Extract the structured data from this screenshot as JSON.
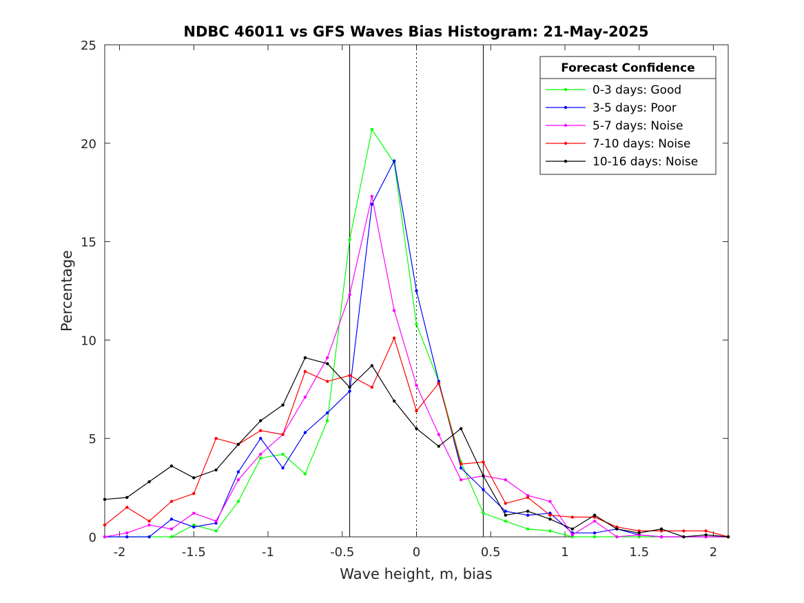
{
  "chart_data": {
    "type": "line",
    "title": "NDBC 46011 vs GFS Waves Bias Histogram: 21-May-2025",
    "xlabel": "Wave height, m, bias",
    "ylabel": "Percentage",
    "xlim": [
      -2.1,
      2.1
    ],
    "ylim": [
      0,
      25
    ],
    "xticks": [
      -2,
      -1.5,
      -1,
      -0.5,
      0,
      0.5,
      1,
      1.5,
      2
    ],
    "xtick_labels": [
      "-2",
      "-1.5",
      "-1",
      "-0.5",
      "0",
      "0.5",
      "1",
      "1.5",
      "2"
    ],
    "yticks": [
      0,
      5,
      10,
      15,
      20,
      25
    ],
    "ytick_labels": [
      "0",
      "5",
      "10",
      "15",
      "20",
      "25"
    ],
    "grid": false,
    "reference_lines": [
      {
        "x": -0.45,
        "style": "solid"
      },
      {
        "x": 0,
        "style": "dotted"
      },
      {
        "x": 0.45,
        "style": "solid"
      }
    ],
    "legend": {
      "title": "Forecast Confidence",
      "position": "top-right"
    },
    "x": [
      -2.1,
      -1.95,
      -1.8,
      -1.65,
      -1.5,
      -1.35,
      -1.2,
      -1.05,
      -0.9,
      -0.75,
      -0.6,
      -0.45,
      -0.3,
      -0.15,
      0,
      0.15,
      0.3,
      0.45,
      0.6,
      0.75,
      0.9,
      1.05,
      1.2,
      1.35,
      1.5,
      1.65,
      1.8,
      1.95,
      2.1
    ],
    "series": [
      {
        "name": "0-3 days: Good",
        "color": "#00ff00",
        "values": [
          0,
          0,
          0,
          0,
          0.6,
          0.3,
          1.8,
          4.0,
          4.2,
          3.2,
          5.9,
          15.1,
          20.7,
          19.0,
          10.8,
          7.9,
          3.8,
          1.2,
          0.8,
          0.4,
          0.3,
          0,
          0,
          0,
          0,
          0,
          0,
          0,
          0
        ]
      },
      {
        "name": "3-5 days: Poor",
        "color": "#0000ff",
        "values": [
          0,
          0,
          0,
          0.9,
          0.5,
          0.7,
          3.3,
          5.0,
          3.5,
          5.3,
          6.3,
          7.4,
          16.9,
          19.1,
          12.5,
          7.9,
          3.5,
          2.4,
          1.3,
          1.1,
          1.2,
          0.2,
          0.2,
          0.4,
          0.1,
          0,
          0,
          0,
          0
        ]
      },
      {
        "name": "5-7 days: Noise",
        "color": "#ff00ff",
        "values": [
          0,
          0.2,
          0.6,
          0.4,
          1.2,
          0.8,
          2.9,
          4.2,
          5.2,
          7.1,
          9.1,
          12.3,
          17.3,
          11.5,
          7.7,
          5.2,
          2.9,
          3.1,
          2.9,
          2.1,
          1.8,
          0.1,
          0.8,
          0,
          0.1,
          0,
          0,
          0,
          0
        ]
      },
      {
        "name": "7-10 days: Noise",
        "color": "#ff0000",
        "values": [
          0.6,
          1.5,
          0.8,
          1.8,
          2.2,
          5.0,
          4.7,
          5.4,
          5.2,
          8.4,
          7.9,
          8.2,
          7.6,
          10.1,
          6.4,
          7.8,
          3.7,
          3.8,
          1.7,
          2.0,
          1.1,
          1.0,
          1.0,
          0.5,
          0.3,
          0.3,
          0.3,
          0.3,
          0
        ]
      },
      {
        "name": "10-16 days: Noise",
        "color": "#000000",
        "values": [
          1.9,
          2.0,
          2.8,
          3.6,
          3.0,
          3.4,
          4.7,
          5.9,
          6.7,
          9.1,
          8.8,
          7.6,
          8.7,
          6.9,
          5.5,
          4.6,
          5.5,
          3.1,
          1.1,
          1.3,
          0.9,
          0.4,
          1.1,
          0.4,
          0.2,
          0.4,
          0,
          0.1,
          0
        ]
      }
    ]
  }
}
